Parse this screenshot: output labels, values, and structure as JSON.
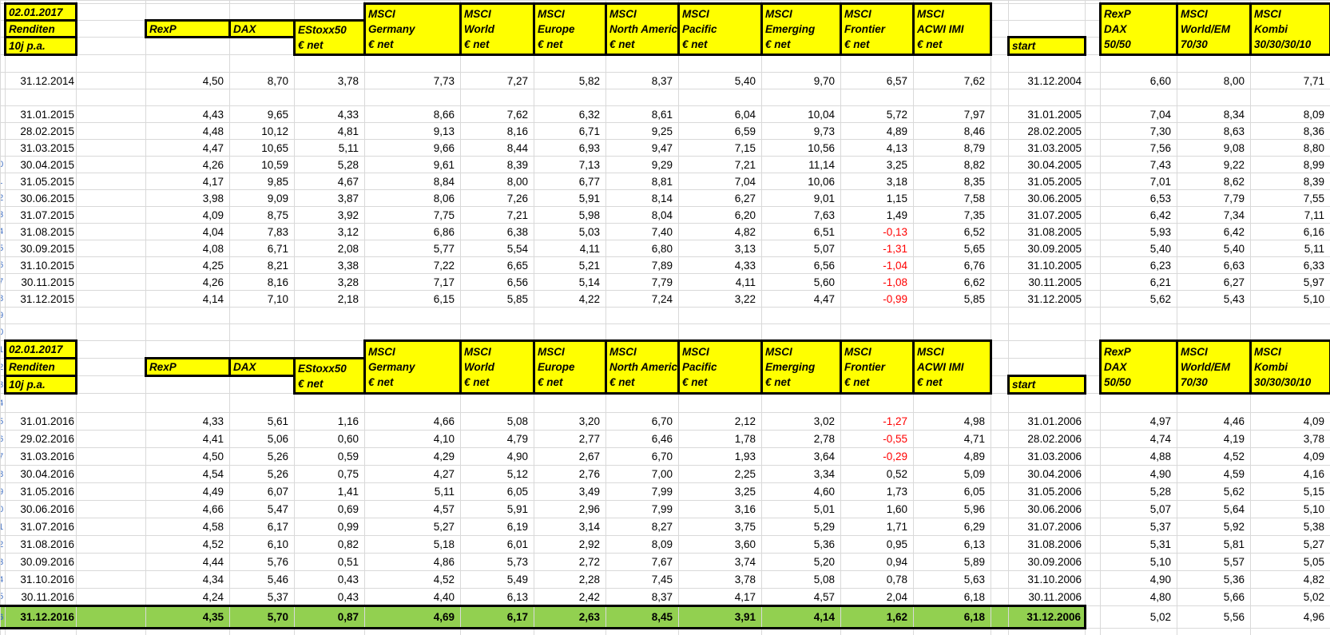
{
  "sheet": {
    "colors": {
      "header_bg": "#FFFF00",
      "total_row_bg": "#92D050",
      "negative_value": "#FF0000",
      "gridline": "#D9D9D9",
      "box_border": "#000000",
      "row_number_text": "#4472C4"
    },
    "header": {
      "corner": [
        "02.01.2017",
        "Renditen",
        "10j p.a."
      ],
      "rexp": "RexP",
      "dax": "DAX",
      "estoxx": [
        "EStoxx50",
        "€ net"
      ],
      "msci": [
        [
          "MSCI",
          "Germany",
          "€ net"
        ],
        [
          "MSCI",
          "World",
          "€ net"
        ],
        [
          "MSCI",
          "Europe",
          "€ net"
        ],
        [
          "MSCI",
          "North Americ",
          "€ net"
        ],
        [
          "MSCI",
          "Pacific",
          "€ net"
        ],
        [
          "MSCI",
          "Emerging",
          "€ net"
        ],
        [
          "MSCI",
          "Frontier",
          "€ net"
        ],
        [
          "MSCI",
          "ACWI IMI",
          "€ net"
        ]
      ],
      "start": "start",
      "combos": [
        [
          "RexP",
          "DAX",
          "50/50"
        ],
        [
          "MSCI",
          "World/EM",
          "70/30"
        ],
        [
          "MSCI",
          "Kombi",
          "30/30/30/10"
        ]
      ]
    },
    "sections": [
      {
        "lead_row": {
          "date": "31.12.2014",
          "vals": [
            "4,50",
            "8,70",
            "3,78",
            "7,73",
            "7,27",
            "5,82",
            "8,37",
            "5,40",
            "9,70",
            "6,57",
            "7,62"
          ],
          "start": "31.12.2004",
          "combo": [
            "6,60",
            "8,00",
            "7,71"
          ]
        },
        "rows": [
          {
            "date": "31.01.2015",
            "vals": [
              "4,43",
              "9,65",
              "4,33",
              "8,66",
              "7,62",
              "6,32",
              "8,61",
              "6,04",
              "10,04",
              "5,72",
              "7,97"
            ],
            "start": "31.01.2005",
            "combo": [
              "7,04",
              "8,34",
              "8,09"
            ]
          },
          {
            "date": "28.02.2015",
            "vals": [
              "4,48",
              "10,12",
              "4,81",
              "9,13",
              "8,16",
              "6,71",
              "9,25",
              "6,59",
              "9,73",
              "4,89",
              "8,46"
            ],
            "start": "28.02.2005",
            "combo": [
              "7,30",
              "8,63",
              "8,36"
            ]
          },
          {
            "date": "31.03.2015",
            "vals": [
              "4,47",
              "10,65",
              "5,11",
              "9,66",
              "8,44",
              "6,93",
              "9,47",
              "7,15",
              "10,56",
              "4,13",
              "8,79"
            ],
            "start": "31.03.2005",
            "combo": [
              "7,56",
              "9,08",
              "8,80"
            ]
          },
          {
            "date": "30.04.2015",
            "vals": [
              "4,26",
              "10,59",
              "5,28",
              "9,61",
              "8,39",
              "7,13",
              "9,29",
              "7,21",
              "11,14",
              "3,25",
              "8,82"
            ],
            "start": "30.04.2005",
            "combo": [
              "7,43",
              "9,22",
              "8,99"
            ]
          },
          {
            "date": "31.05.2015",
            "vals": [
              "4,17",
              "9,85",
              "4,67",
              "8,84",
              "8,00",
              "6,77",
              "8,81",
              "7,04",
              "10,06",
              "3,18",
              "8,35"
            ],
            "start": "31.05.2005",
            "combo": [
              "7,01",
              "8,62",
              "8,39"
            ]
          },
          {
            "date": "30.06.2015",
            "vals": [
              "3,98",
              "9,09",
              "3,87",
              "8,06",
              "7,26",
              "5,91",
              "8,14",
              "6,27",
              "9,01",
              "1,15",
              "7,58"
            ],
            "start": "30.06.2005",
            "combo": [
              "6,53",
              "7,79",
              "7,55"
            ]
          },
          {
            "date": "31.07.2015",
            "vals": [
              "4,09",
              "8,75",
              "3,92",
              "7,75",
              "7,21",
              "5,98",
              "8,04",
              "6,20",
              "7,63",
              "1,49",
              "7,35"
            ],
            "start": "31.07.2005",
            "combo": [
              "6,42",
              "7,34",
              "7,11"
            ]
          },
          {
            "date": "31.08.2015",
            "vals": [
              "4,04",
              "7,83",
              "3,12",
              "6,86",
              "6,38",
              "5,03",
              "7,40",
              "4,82",
              "6,51",
              "-0,13",
              "6,52"
            ],
            "start": "31.08.2005",
            "combo": [
              "5,93",
              "6,42",
              "6,16"
            ]
          },
          {
            "date": "30.09.2015",
            "vals": [
              "4,08",
              "6,71",
              "2,08",
              "5,77",
              "5,54",
              "4,11",
              "6,80",
              "3,13",
              "5,07",
              "-1,31",
              "5,65"
            ],
            "start": "30.09.2005",
            "combo": [
              "5,40",
              "5,40",
              "5,11"
            ]
          },
          {
            "date": "31.10.2015",
            "vals": [
              "4,25",
              "8,21",
              "3,38",
              "7,22",
              "6,65",
              "5,21",
              "7,89",
              "4,33",
              "6,56",
              "-1,04",
              "6,76"
            ],
            "start": "31.10.2005",
            "combo": [
              "6,23",
              "6,63",
              "6,33"
            ]
          },
          {
            "date": "30.11.2015",
            "vals": [
              "4,26",
              "8,16",
              "3,28",
              "7,17",
              "6,56",
              "5,14",
              "7,79",
              "4,11",
              "5,60",
              "-1,08",
              "6,62"
            ],
            "start": "30.11.2005",
            "combo": [
              "6,21",
              "6,27",
              "5,97"
            ]
          },
          {
            "date": "31.12.2015",
            "vals": [
              "4,14",
              "7,10",
              "2,18",
              "6,15",
              "5,85",
              "4,22",
              "7,24",
              "3,22",
              "4,47",
              "-0,99",
              "5,85"
            ],
            "start": "31.12.2005",
            "combo": [
              "5,62",
              "5,43",
              "5,10"
            ]
          }
        ]
      },
      {
        "rows": [
          {
            "date": "31.01.2016",
            "vals": [
              "4,33",
              "5,61",
              "1,16",
              "4,66",
              "5,08",
              "3,20",
              "6,70",
              "2,12",
              "3,02",
              "-1,27",
              "4,98"
            ],
            "start": "31.01.2006",
            "combo": [
              "4,97",
              "4,46",
              "4,09"
            ]
          },
          {
            "date": "29.02.2016",
            "vals": [
              "4,41",
              "5,06",
              "0,60",
              "4,10",
              "4,79",
              "2,77",
              "6,46",
              "1,78",
              "2,78",
              "-0,55",
              "4,71"
            ],
            "start": "28.02.2006",
            "combo": [
              "4,74",
              "4,19",
              "3,78"
            ]
          },
          {
            "date": "31.03.2016",
            "vals": [
              "4,50",
              "5,26",
              "0,59",
              "4,29",
              "4,90",
              "2,67",
              "6,70",
              "1,93",
              "3,64",
              "-0,29",
              "4,89"
            ],
            "start": "31.03.2006",
            "combo": [
              "4,88",
              "4,52",
              "4,09"
            ]
          },
          {
            "date": "30.04.2016",
            "vals": [
              "4,54",
              "5,26",
              "0,75",
              "4,27",
              "5,12",
              "2,76",
              "7,00",
              "2,25",
              "3,34",
              "0,52",
              "5,09"
            ],
            "start": "30.04.2006",
            "combo": [
              "4,90",
              "4,59",
              "4,16"
            ]
          },
          {
            "date": "31.05.2016",
            "vals": [
              "4,49",
              "6,07",
              "1,41",
              "5,11",
              "6,05",
              "3,49",
              "7,99",
              "3,25",
              "4,60",
              "1,73",
              "6,05"
            ],
            "start": "31.05.2006",
            "combo": [
              "5,28",
              "5,62",
              "5,15"
            ]
          },
          {
            "date": "30.06.2016",
            "vals": [
              "4,66",
              "5,47",
              "0,69",
              "4,57",
              "5,91",
              "2,96",
              "7,99",
              "3,16",
              "5,01",
              "1,60",
              "5,96"
            ],
            "start": "30.06.2006",
            "combo": [
              "5,07",
              "5,64",
              "5,10"
            ]
          },
          {
            "date": "31.07.2016",
            "vals": [
              "4,58",
              "6,17",
              "0,99",
              "5,27",
              "6,19",
              "3,14",
              "8,27",
              "3,75",
              "5,29",
              "1,71",
              "6,29"
            ],
            "start": "31.07.2006",
            "combo": [
              "5,37",
              "5,92",
              "5,38"
            ]
          },
          {
            "date": "31.08.2016",
            "vals": [
              "4,52",
              "6,10",
              "0,82",
              "5,18",
              "6,01",
              "2,92",
              "8,09",
              "3,60",
              "5,36",
              "0,95",
              "6,13"
            ],
            "start": "31.08.2006",
            "combo": [
              "5,31",
              "5,81",
              "5,27"
            ]
          },
          {
            "date": "30.09.2016",
            "vals": [
              "4,44",
              "5,76",
              "0,51",
              "4,86",
              "5,73",
              "2,72",
              "7,67",
              "3,74",
              "5,20",
              "0,94",
              "5,89"
            ],
            "start": "30.09.2006",
            "combo": [
              "5,10",
              "5,57",
              "5,05"
            ]
          },
          {
            "date": "31.10.2016",
            "vals": [
              "4,34",
              "5,46",
              "0,43",
              "4,52",
              "5,49",
              "2,28",
              "7,45",
              "3,78",
              "5,08",
              "0,78",
              "5,63"
            ],
            "start": "31.10.2006",
            "combo": [
              "4,90",
              "5,36",
              "4,82"
            ]
          },
          {
            "date": "30.11.2016",
            "vals": [
              "4,24",
              "5,37",
              "0,43",
              "4,40",
              "6,13",
              "2,42",
              "8,37",
              "4,17",
              "4,57",
              "2,04",
              "6,18"
            ],
            "start": "30.11.2006",
            "combo": [
              "4,80",
              "5,66",
              "5,02"
            ]
          }
        ],
        "total_row": {
          "date": "31.12.2016",
          "vals": [
            "4,35",
            "5,70",
            "0,87",
            "4,69",
            "6,17",
            "2,63",
            "8,45",
            "3,91",
            "4,14",
            "1,62",
            "6,18"
          ],
          "start": "31.12.2006",
          "combo": [
            "5,02",
            "5,56",
            "4,96"
          ]
        }
      }
    ]
  }
}
